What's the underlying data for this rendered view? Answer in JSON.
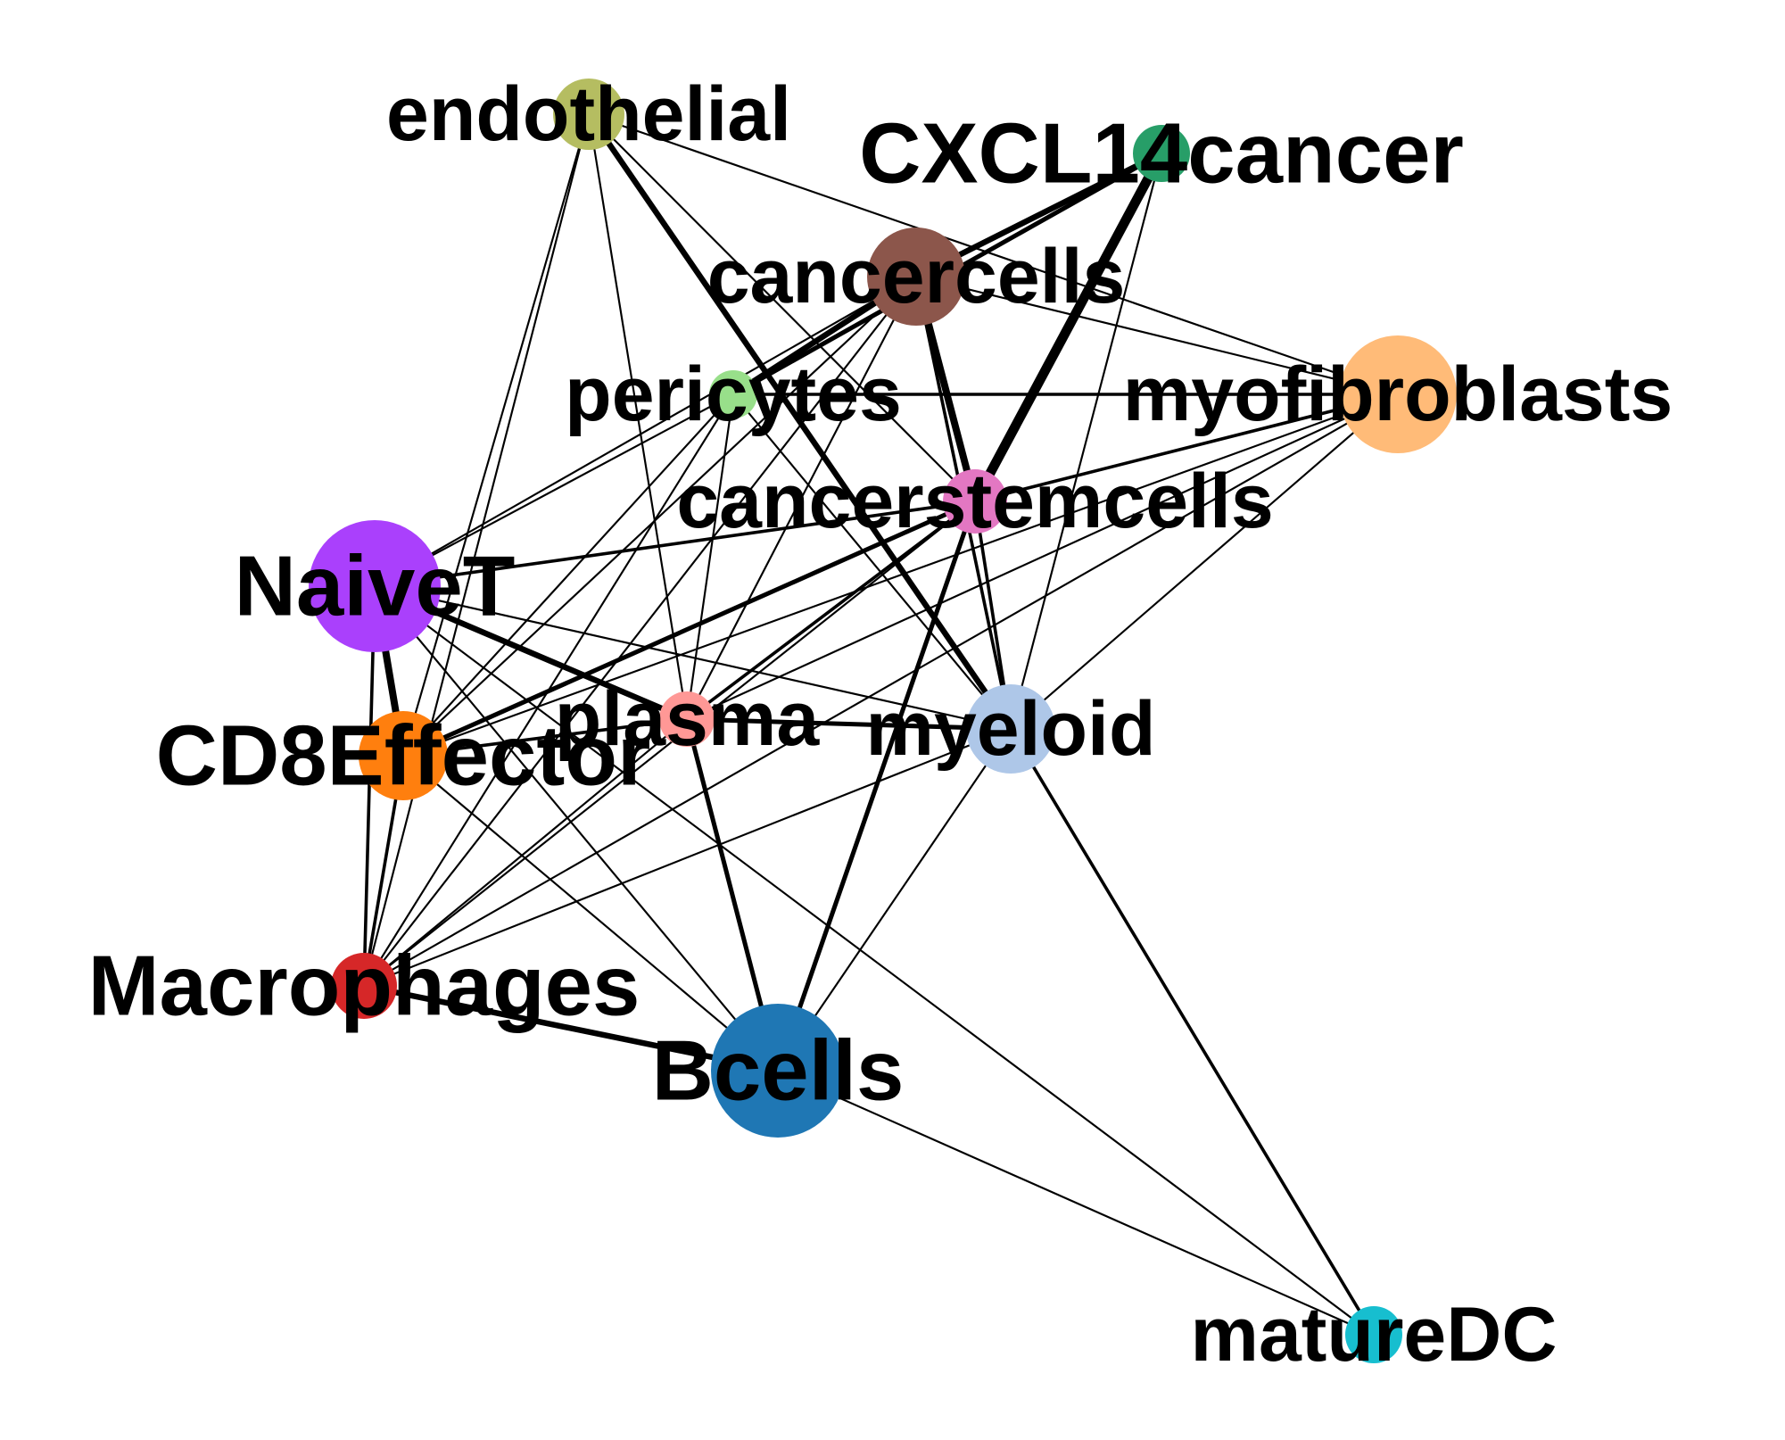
{
  "diagram": {
    "type": "network",
    "nodes": [
      {
        "id": "endothelial",
        "label": "endothelial",
        "color": "#b5bd61",
        "size": "small"
      },
      {
        "id": "CXCL14cancer",
        "label": "CXCL14cancer",
        "color": "#279e68",
        "size": "small"
      },
      {
        "id": "cancercells",
        "label": "cancercells",
        "color": "#8c564b",
        "size": "medium"
      },
      {
        "id": "pericytes",
        "label": "pericytes",
        "color": "#98df8a",
        "size": "small"
      },
      {
        "id": "myofibroblasts",
        "label": "myofibroblasts",
        "color": "#ffbb78",
        "size": "large"
      },
      {
        "id": "cancerstemcells",
        "label": "cancerstemcells",
        "color": "#e377c2",
        "size": "small"
      },
      {
        "id": "NaiveT",
        "label": "NaiveT",
        "color": "#aa40fc",
        "size": "large"
      },
      {
        "id": "plasma",
        "label": "plasma",
        "color": "#ff9896",
        "size": "small"
      },
      {
        "id": "myeloid",
        "label": "myeloid",
        "color": "#aec7e8",
        "size": "medium"
      },
      {
        "id": "CD8Effector",
        "label": "CD8Effector",
        "color": "#ff7f0e",
        "size": "medium"
      },
      {
        "id": "Macrophages",
        "label": "Macrophages",
        "color": "#d62728",
        "size": "small"
      },
      {
        "id": "Bcells",
        "label": "Bcells",
        "color": "#1f77b4",
        "size": "large"
      },
      {
        "id": "matureDC",
        "label": "matureDC",
        "color": "#17becf",
        "size": "small"
      }
    ],
    "edges": [
      {
        "source": "endothelial",
        "target": "cancerstemcells",
        "weight": 1
      },
      {
        "source": "endothelial",
        "target": "myeloid",
        "weight": 4
      },
      {
        "source": "endothelial",
        "target": "plasma",
        "weight": 1
      },
      {
        "source": "endothelial",
        "target": "myofibroblasts",
        "weight": 1
      },
      {
        "source": "endothelial",
        "target": "CD8Effector",
        "weight": 1
      },
      {
        "source": "endothelial",
        "target": "Macrophages",
        "weight": 1
      },
      {
        "source": "CXCL14cancer",
        "target": "cancercells",
        "weight": 4
      },
      {
        "source": "CXCL14cancer",
        "target": "cancerstemcells",
        "weight": 7
      },
      {
        "source": "CXCL14cancer",
        "target": "pericytes",
        "weight": 3
      },
      {
        "source": "CXCL14cancer",
        "target": "myeloid",
        "weight": 1
      },
      {
        "source": "cancercells",
        "target": "pericytes",
        "weight": 4
      },
      {
        "source": "cancercells",
        "target": "cancerstemcells",
        "weight": 5
      },
      {
        "source": "cancercells",
        "target": "myofibroblasts",
        "weight": 1
      },
      {
        "source": "cancercells",
        "target": "NaiveT",
        "weight": 1
      },
      {
        "source": "cancercells",
        "target": "myeloid",
        "weight": 2
      },
      {
        "source": "cancercells",
        "target": "CD8Effector",
        "weight": 1
      },
      {
        "source": "cancercells",
        "target": "Macrophages",
        "weight": 1
      },
      {
        "source": "cancercells",
        "target": "plasma",
        "weight": 1
      },
      {
        "source": "pericytes",
        "target": "myofibroblasts",
        "weight": 2
      },
      {
        "source": "pericytes",
        "target": "NaiveT",
        "weight": 1
      },
      {
        "source": "pericytes",
        "target": "myeloid",
        "weight": 1
      },
      {
        "source": "pericytes",
        "target": "Macrophages",
        "weight": 1
      },
      {
        "source": "pericytes",
        "target": "CD8Effector",
        "weight": 1
      },
      {
        "source": "pericytes",
        "target": "plasma",
        "weight": 1
      },
      {
        "source": "myofibroblasts",
        "target": "cancerstemcells",
        "weight": 2
      },
      {
        "source": "myofibroblasts",
        "target": "CD8Effector",
        "weight": 1
      },
      {
        "source": "myofibroblasts",
        "target": "Macrophages",
        "weight": 1
      },
      {
        "source": "myofibroblasts",
        "target": "plasma",
        "weight": 1
      },
      {
        "source": "myofibroblasts",
        "target": "myeloid",
        "weight": 1
      },
      {
        "source": "cancerstemcells",
        "target": "NaiveT",
        "weight": 2
      },
      {
        "source": "cancerstemcells",
        "target": "CD8Effector",
        "weight": 3
      },
      {
        "source": "cancerstemcells",
        "target": "plasma",
        "weight": 2
      },
      {
        "source": "cancerstemcells",
        "target": "myeloid",
        "weight": 2
      },
      {
        "source": "cancerstemcells",
        "target": "Bcells",
        "weight": 3
      },
      {
        "source": "cancerstemcells",
        "target": "Macrophages",
        "weight": 1
      },
      {
        "source": "NaiveT",
        "target": "CD8Effector",
        "weight": 5
      },
      {
        "source": "NaiveT",
        "target": "plasma",
        "weight": 4
      },
      {
        "source": "NaiveT",
        "target": "myeloid",
        "weight": 1
      },
      {
        "source": "NaiveT",
        "target": "Macrophages",
        "weight": 2
      },
      {
        "source": "NaiveT",
        "target": "Bcells",
        "weight": 1
      },
      {
        "source": "NaiveT",
        "target": "matureDC",
        "weight": 1
      },
      {
        "source": "plasma",
        "target": "myeloid",
        "weight": 3
      },
      {
        "source": "plasma",
        "target": "CD8Effector",
        "weight": 2
      },
      {
        "source": "plasma",
        "target": "Bcells",
        "weight": 3
      },
      {
        "source": "plasma",
        "target": "Macrophages",
        "weight": 1
      },
      {
        "source": "myeloid",
        "target": "matureDC",
        "weight": 2
      },
      {
        "source": "myeloid",
        "target": "Bcells",
        "weight": 1
      },
      {
        "source": "myeloid",
        "target": "Macrophages",
        "weight": 1
      },
      {
        "source": "CD8Effector",
        "target": "Macrophages",
        "weight": 2
      },
      {
        "source": "CD8Effector",
        "target": "Bcells",
        "weight": 1
      },
      {
        "source": "Macrophages",
        "target": "Bcells",
        "weight": 4
      },
      {
        "source": "Bcells",
        "target": "matureDC",
        "weight": 1
      }
    ]
  }
}
